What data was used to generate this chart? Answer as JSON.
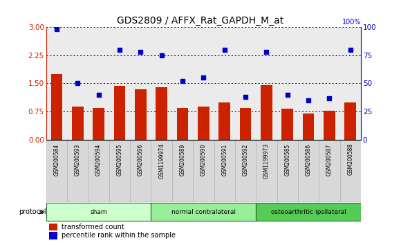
{
  "title": "GDS2809 / AFFX_Rat_GAPDH_M_at",
  "samples": [
    "GSM200584",
    "GSM200593",
    "GSM200594",
    "GSM200595",
    "GSM200596",
    "GSM1199974",
    "GSM200589",
    "GSM200590",
    "GSM200591",
    "GSM200592",
    "GSM1199973",
    "GSM200585",
    "GSM200586",
    "GSM200587",
    "GSM200588"
  ],
  "bar_values": [
    1.75,
    0.88,
    0.85,
    1.43,
    1.35,
    1.4,
    0.85,
    0.88,
    1.0,
    0.85,
    1.45,
    0.82,
    0.7,
    0.78,
    1.0
  ],
  "dot_values_pct": [
    98,
    50,
    40,
    80,
    78,
    75,
    52,
    55,
    80,
    38,
    78,
    40,
    35,
    37,
    80
  ],
  "left_ylim": [
    0,
    3
  ],
  "left_yticks": [
    0,
    0.75,
    1.5,
    2.25,
    3
  ],
  "right_ylim": [
    0,
    100
  ],
  "right_yticks": [
    0,
    25,
    50,
    75,
    100
  ],
  "bar_color": "#cc2200",
  "dot_color": "#0000cc",
  "groups": [
    {
      "label": "sham",
      "start": 0,
      "end": 5,
      "color": "#ccffcc"
    },
    {
      "label": "normal contralateral",
      "start": 5,
      "end": 10,
      "color": "#99ee99"
    },
    {
      "label": "osteoarthritic ipsilateral",
      "start": 10,
      "end": 15,
      "color": "#55cc55"
    }
  ],
  "protocol_label": "protocol",
  "legend_bar_label": "transformed count",
  "legend_dot_label": "percentile rank within the sample",
  "tick_label_color_left": "#cc2200",
  "tick_label_color_right": "#0000cc",
  "group_edge_color": "#226622",
  "sample_bg_color": "#d8d8d8"
}
